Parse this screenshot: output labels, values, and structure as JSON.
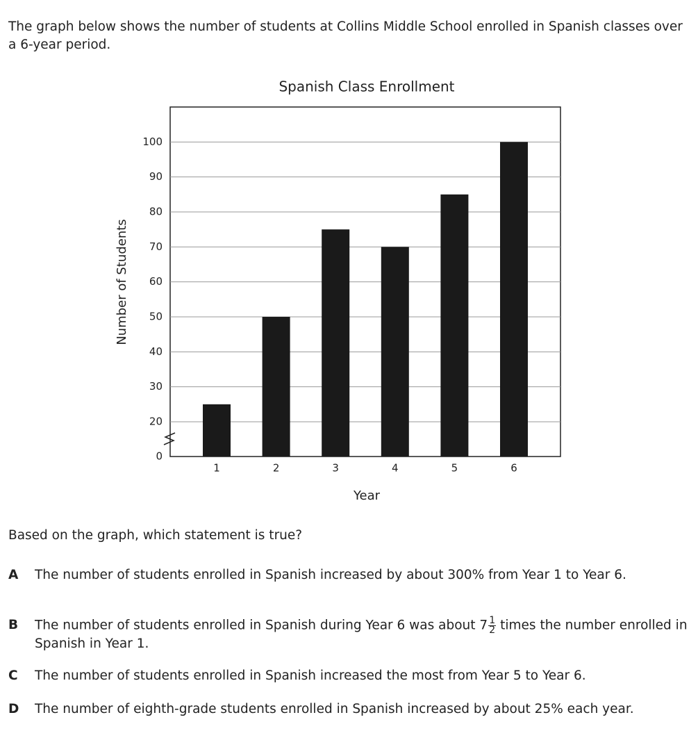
{
  "intro": "The graph below shows the number of students at Collins Middle School enrolled in Spanish classes over a 6-year period.",
  "chart_data": {
    "type": "bar",
    "title": "Spanish Class Enrollment",
    "x_label": "Year",
    "y_label": "Number of Students",
    "categories": [
      "1",
      "2",
      "3",
      "4",
      "5",
      "6"
    ],
    "values": [
      25,
      50,
      75,
      70,
      85,
      100
    ],
    "color": "#1a1a1a",
    "ylim": [
      0,
      110
    ],
    "yticks": [
      0,
      20,
      30,
      40,
      50,
      60,
      70,
      80,
      90,
      100
    ],
    "grid": true,
    "axis_break": true
  },
  "question": "Based on the graph, which statement is true?",
  "choices": [
    {
      "letter": "A",
      "text": "The number of students enrolled in Spanish increased by about 300% from Year 1 to Year 6."
    },
    {
      "letter": "B",
      "text_before": "The number of students enrolled in Spanish during Year 6 was about 7",
      "fraction": {
        "numerator": "1",
        "denominator": "2"
      },
      "text_after": "times the number enrolled in Spanish in Year 1."
    },
    {
      "letter": "C",
      "text": "The number of students enrolled in Spanish increased the most from Year 5 to Year 6."
    },
    {
      "letter": "D",
      "text": "The number of eighth-grade students enrolled in Spanish increased by about 25% each year."
    }
  ]
}
